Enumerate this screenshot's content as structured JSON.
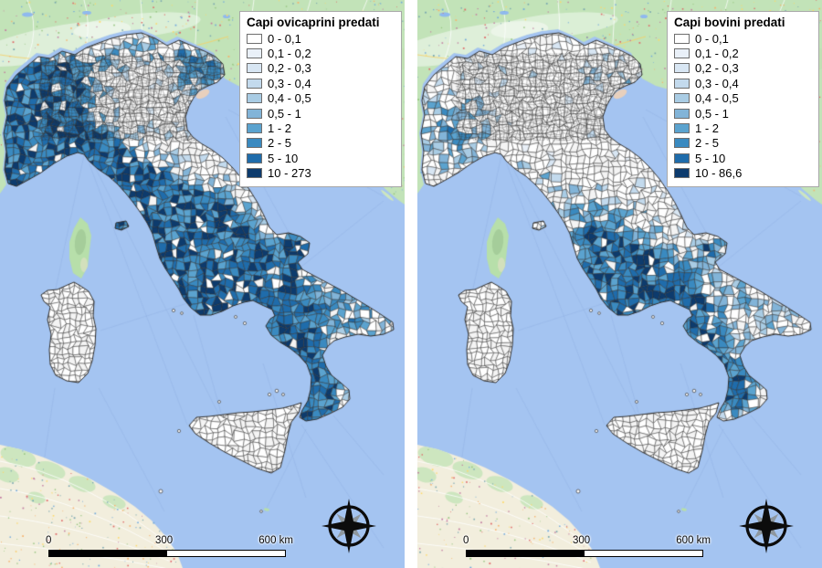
{
  "figure": {
    "panels": [
      {
        "id": "ovicaprini",
        "legend": {
          "title": "Capi ovicaprini predati",
          "classes": [
            {
              "label": "0 - 0,1",
              "color": "#ffffff"
            },
            {
              "label": "0,1 - 0,2",
              "color": "#e9f0f8"
            },
            {
              "label": "0,2 - 0,3",
              "color": "#d8e6f3"
            },
            {
              "label": "0,3 - 0,4",
              "color": "#c3daed"
            },
            {
              "label": "0,4 - 0,5",
              "color": "#a9cce4"
            },
            {
              "label": "0,5 - 1",
              "color": "#82b4d8"
            },
            {
              "label": "1 - 2",
              "color": "#5ba3cf"
            },
            {
              "label": "2 - 5",
              "color": "#3a8ac0"
            },
            {
              "label": "5 - 10",
              "color": "#1f6cab"
            },
            {
              "label": "10 - 273",
              "color": "#0d3b6d"
            }
          ]
        },
        "scalebar": {
          "labels": [
            "0",
            "300",
            "600 km"
          ]
        }
      },
      {
        "id": "bovini",
        "legend": {
          "title": "Capi bovini predati",
          "classes": [
            {
              "label": "0 - 0,1",
              "color": "#ffffff"
            },
            {
              "label": "0,1 - 0,2",
              "color": "#e9f0f8"
            },
            {
              "label": "0,2 - 0,3",
              "color": "#d8e6f3"
            },
            {
              "label": "0,3 - 0,4",
              "color": "#c3daed"
            },
            {
              "label": "0,4 - 0,5",
              "color": "#a9cce4"
            },
            {
              "label": "0,5 - 1",
              "color": "#82b4d8"
            },
            {
              "label": "1 - 2",
              "color": "#5ba3cf"
            },
            {
              "label": "2 - 5",
              "color": "#3a8ac0"
            },
            {
              "label": "5 - 10",
              "color": "#1f6cab"
            },
            {
              "label": "10 - 86,6",
              "color": "#0d3b6d"
            }
          ]
        },
        "scalebar": {
          "labels": [
            "0",
            "300",
            "600 km"
          ]
        }
      }
    ],
    "map_colors": {
      "sea": "#a4c4f1",
      "land_green": "#c2e3b8",
      "land_beige": "#f2eedd",
      "africa_green": "#cde6bf",
      "corsica_green": "#b7dfaa",
      "lake_blue": "#8fb9ee",
      "municipality_outline": "#2d2d2d",
      "route_line": "#82a0d8"
    }
  }
}
